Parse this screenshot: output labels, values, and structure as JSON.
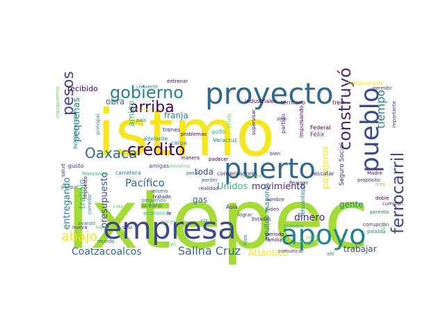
{
  "colors": {
    "background": "#ffffff",
    "lime": "#a5db36",
    "yellow": "#f6e620",
    "green": "#35b779",
    "teal": "#26828e",
    "blue": "#31688e",
    "navy": "#3e4989",
    "purple": "#482878",
    "dark": "#440154",
    "light": "#6ece58"
  },
  "words": [
    "Ixtepec",
    "istmo",
    "empresa",
    "proyecto",
    "apoyo",
    "puerto",
    "pueblo",
    "ferrocarril",
    "gobierno",
    "crédito",
    "Oaxaca",
    "pesos",
    "arriba",
    "construyó",
    "abajo",
    "Salina Cruz",
    "Coatzacoalcos",
    "Atlántico",
    "trabajar",
    "tiempo",
    "Pacífico",
    "presupuesto",
    "entregando",
    "pasajeros",
    "dinero",
    "movimiento",
    "Unidos",
    "gente",
    "trabajo",
    "pequeñas",
    "recibido",
    "obra",
    "franja",
    "amigo",
    "toda",
    "gas",
    "adultos mayores",
    "Seguro Social",
    "territorio",
    "industriales",
    "tren",
    "partido",
    "impulsando",
    "Félix",
    "Federal",
    "conservadores",
    "rescatar",
    "Tehuantepec",
    "Pearson",
    "nombre",
    "grandes",
    "periodo",
    "familia",
    "Asia",
    "economía",
    "océano",
    "tratado",
    "realidad",
    "Veracruz",
    "golfo",
    "crisis",
    "problemas",
    "trenes",
    "carga",
    "adelante",
    "país",
    "nuevo",
    "principal",
    "entrenar",
    "trabajadores",
    "permitir",
    "importante",
    "propósito",
    "corrupción",
    "palabra",
    "Madre",
    "permite",
    "cumplan",
    "siglo",
    "inauguremos",
    "Rehabilitación",
    "Manzanillo",
    "carretera",
    "salud",
    "gusto",
    "parque",
    "Impuesto",
    "corredor",
    "avanzó",
    "mundo",
    "nueva",
    "llegó",
    "sólo",
    "amigas",
    "convierta",
    "vía",
    "fe",
    "poner",
    "vida",
    "mismo",
    "pequeños",
    "supervisar",
    "marítimo",
    "bien",
    "sino",
    "lograr",
    "piden",
    "comunicar",
    "siempre",
    "hizo",
    "Estados",
    "manera",
    "padecer",
    "pesar",
    "perder",
    "junto",
    "convertir",
    "base",
    "doble",
    "ahí",
    "tres",
    "especial"
  ]
}
